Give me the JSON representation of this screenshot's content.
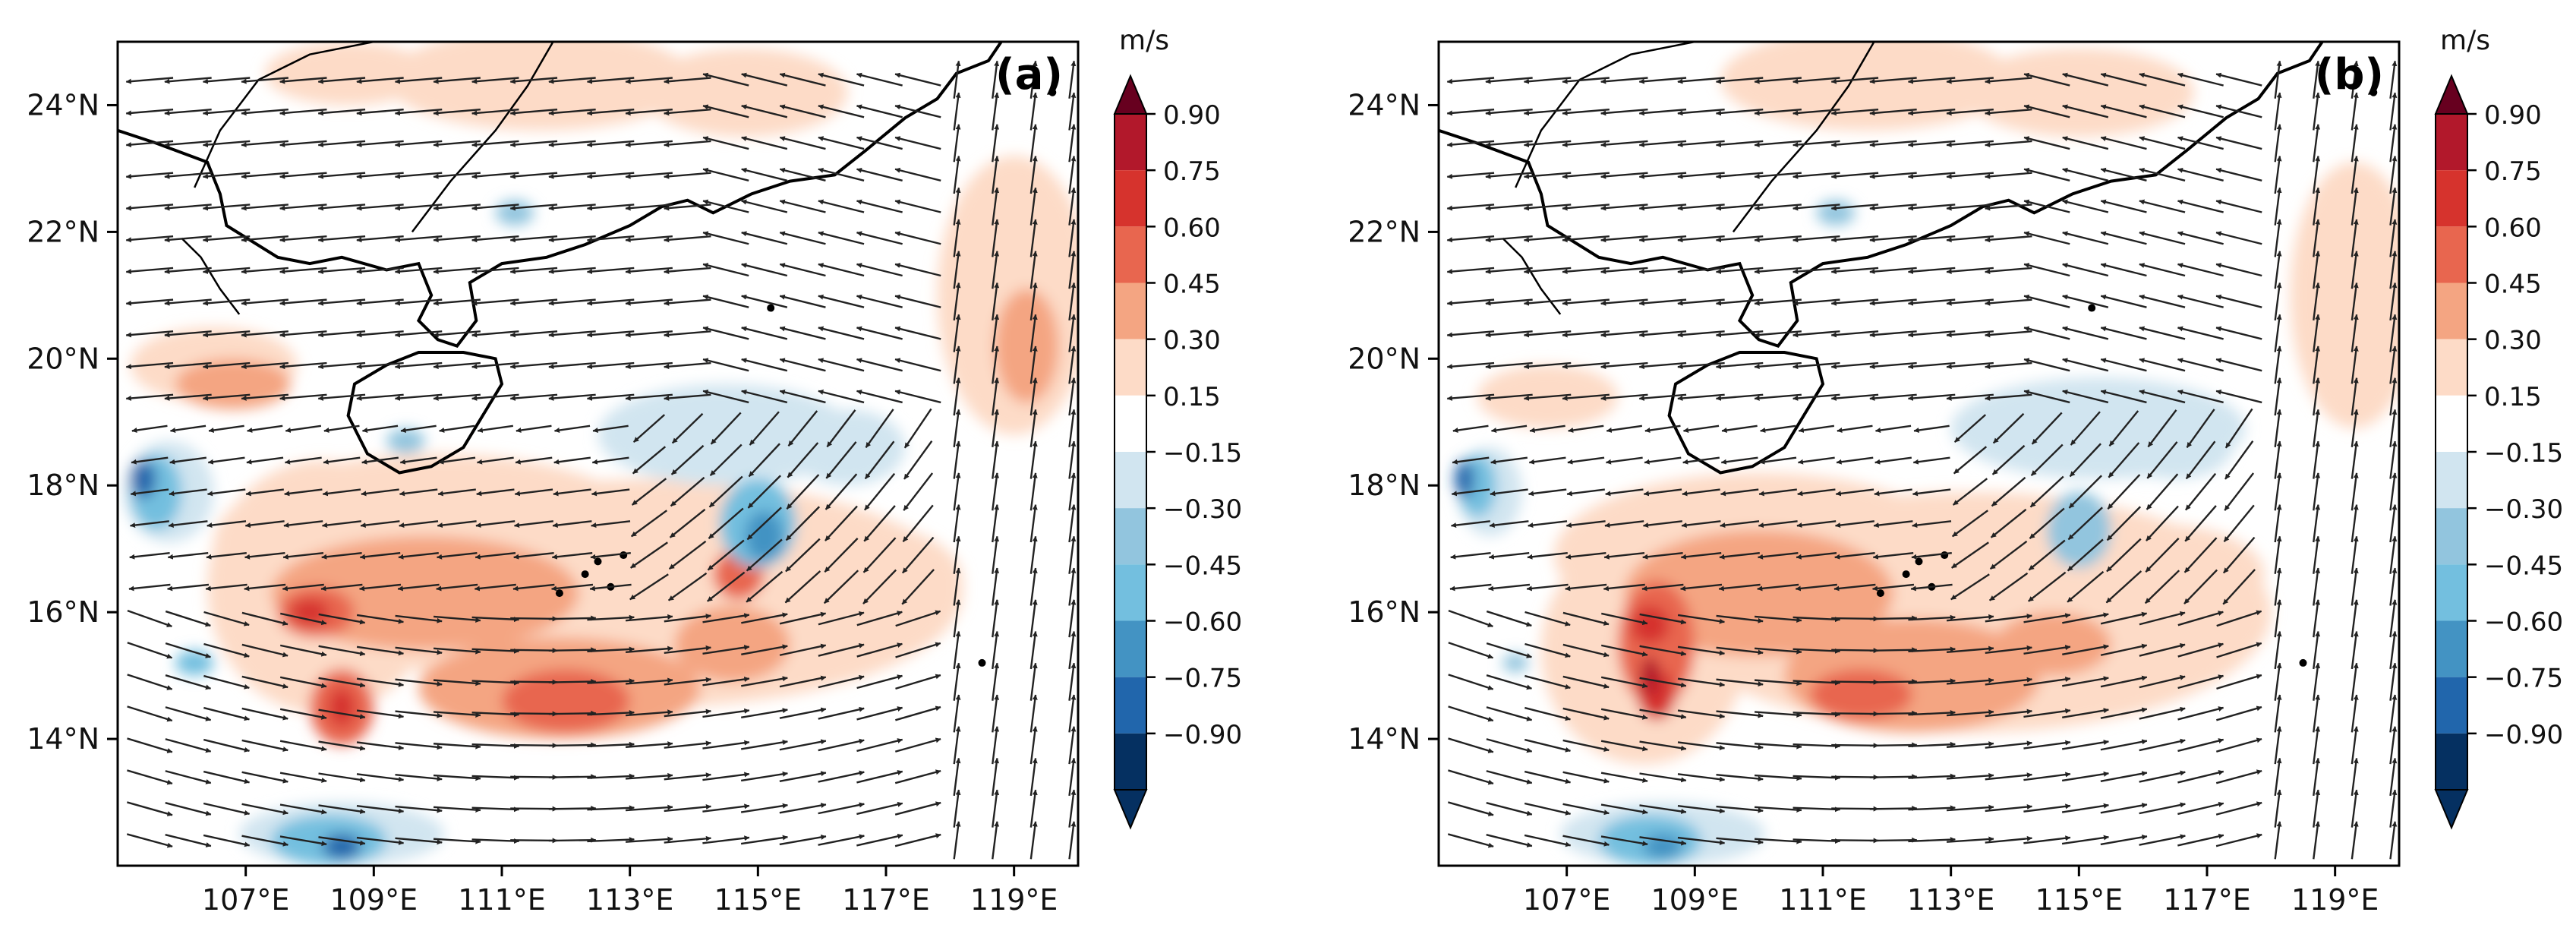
{
  "chart_data": [
    {
      "type": "heatmap",
      "panel_label": "(a)",
      "xticks": [
        "107°E",
        "109°E",
        "111°E",
        "113°E",
        "115°E",
        "117°E",
        "119°E"
      ],
      "yticks": [
        "24°N",
        "22°N",
        "20°N",
        "18°N",
        "16°N",
        "14°N"
      ],
      "xlim": [
        105,
        120
      ],
      "ylim": [
        12,
        25
      ],
      "colorbar": {
        "unit": "m/s",
        "tick_labels": [
          "0.90",
          "0.75",
          "0.60",
          "0.45",
          "0.30",
          "0.15",
          "−0.15",
          "−0.30",
          "−0.45",
          "−0.60",
          "−0.75",
          "−0.90"
        ]
      },
      "vector_field": "wind anomaly arrows"
    },
    {
      "type": "heatmap",
      "panel_label": "(b)",
      "xticks": [
        "107°E",
        "109°E",
        "111°E",
        "113°E",
        "115°E",
        "117°E",
        "119°E"
      ],
      "yticks": [
        "24°N",
        "22°N",
        "20°N",
        "18°N",
        "16°N",
        "14°N"
      ],
      "xlim": [
        105,
        120
      ],
      "ylim": [
        12,
        25
      ],
      "colorbar": {
        "unit": "m/s",
        "tick_labels": [
          "0.90",
          "0.75",
          "0.60",
          "0.45",
          "0.30",
          "0.15",
          "−0.15",
          "−0.30",
          "−0.45",
          "−0.60",
          "−0.75",
          "−0.90"
        ]
      },
      "vector_field": "wind anomaly arrows"
    }
  ],
  "colors": {
    "levels": [
      "#053061",
      "#2166ac",
      "#4393c3",
      "#73bfdf",
      "#92c5de",
      "#d1e5f0",
      "#ffffff",
      "#fddbc7",
      "#f4a582",
      "#e8664f",
      "#d6332d",
      "#b2182b",
      "#67001f"
    ],
    "arrow": "#222222",
    "coast": "#000000"
  }
}
